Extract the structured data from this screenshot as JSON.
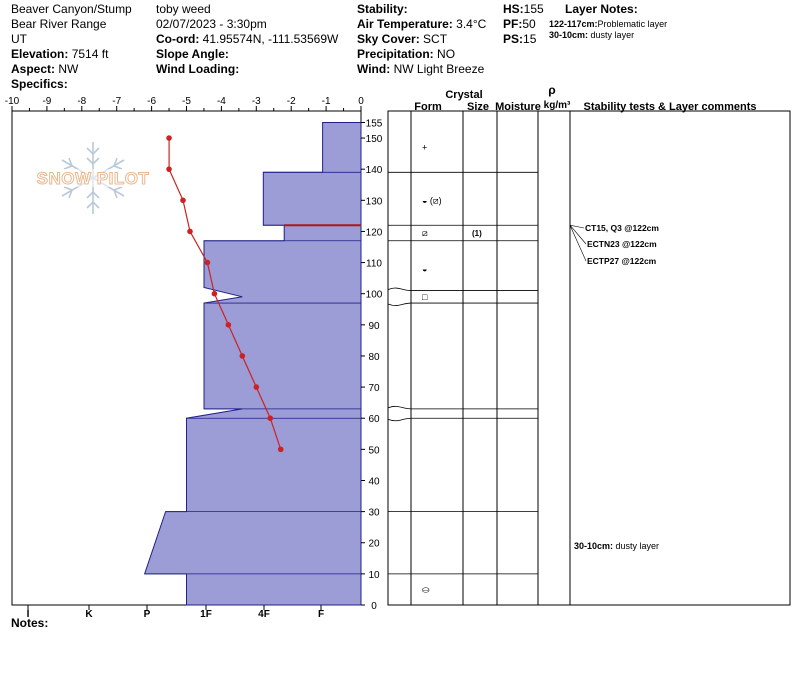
{
  "header": {
    "location": "Beaver Canyon/Stump",
    "range": "Bear River Range",
    "state": "UT",
    "elevation_label": "Elevation:",
    "elevation": "7514 ft",
    "aspect_label": "Aspect:",
    "aspect": "NW",
    "specifics_label": "Specifics:",
    "observer": "toby weed",
    "datetime": "02/07/2023 - 3:30pm",
    "coord_label": "Co-ord:",
    "coord": "41.95574N, -111.53569W",
    "slope_label": "Slope Angle:",
    "slope": "",
    "wind_loading_label": "Wind Loading:",
    "wind_loading": "",
    "stability_label": "Stability:",
    "stability": "",
    "air_temp_label": "Air Temperature:",
    "air_temp": "3.4°C",
    "sky_label": "Sky Cover:",
    "sky": "SCT",
    "precip_label": "Precipitation:",
    "precip": "NO",
    "wind_label": "Wind:",
    "wind": "NW Light Breeze",
    "hs_label": "HS:",
    "hs": "155",
    "pf_label": "PF:",
    "pf": "50",
    "ps_label": "PS:",
    "ps": "15",
    "layer_notes_label": "Layer Notes:",
    "layer_notes": [
      {
        "range": "122-117cm:",
        "text": "Problematic layer"
      },
      {
        "range": "30-10cm:",
        "text": "dusty layer"
      }
    ]
  },
  "watermark": "SNOW PILOT",
  "notes_label": "Notes:",
  "table_headers": {
    "crystal": "Crystal",
    "form": "Form",
    "size": "Size",
    "moisture": "Moisture",
    "rho": "ρ",
    "density_unit": "kg/m³",
    "comments": "Stability tests & Layer comments"
  },
  "chart_data": {
    "type": "snow-profile",
    "temp_axis": {
      "min": -10,
      "max": 0,
      "ticks": [
        -10,
        -9,
        -8,
        -7,
        -6,
        -5,
        -4,
        -3,
        -2,
        -1,
        0
      ]
    },
    "depth_axis": {
      "min": 0,
      "max": 155,
      "ticks": [
        0,
        10,
        20,
        30,
        40,
        50,
        60,
        70,
        80,
        90,
        100,
        110,
        120,
        130,
        140,
        150,
        155
      ]
    },
    "hardness_ticks": [
      "I",
      "K",
      "P",
      "1F",
      "4F",
      "F"
    ],
    "hardness_profile": [
      {
        "depth": 155,
        "temp_x": -1.1
      },
      {
        "depth": 139,
        "temp_x": -1.1
      },
      {
        "depth": 139,
        "temp_x": -2.8
      },
      {
        "depth": 122,
        "temp_x": -2.8
      },
      {
        "depth": 122,
        "temp_x": -2.2
      },
      {
        "depth": 117,
        "temp_x": -2.2
      },
      {
        "depth": 117,
        "temp_x": -4.5
      },
      {
        "depth": 102,
        "temp_x": -4.5
      },
      {
        "depth": 99,
        "temp_x": -3.4
      },
      {
        "depth": 97,
        "temp_x": -4.5
      },
      {
        "depth": 63,
        "temp_x": -4.5
      },
      {
        "depth": 63,
        "temp_x": -3.4
      },
      {
        "depth": 60,
        "temp_x": -5.0
      },
      {
        "depth": 30,
        "temp_x": -5.0
      },
      {
        "depth": 30,
        "temp_x": -5.6
      },
      {
        "depth": 10,
        "temp_x": -6.2
      },
      {
        "depth": 10,
        "temp_x": -5.0
      },
      {
        "depth": 0,
        "temp_x": -5.0
      }
    ],
    "highlight_layer": {
      "depth": 122,
      "from_x": -2.2,
      "to_x": 0
    },
    "temperature_profile": [
      {
        "temp": -5.5,
        "depth": 150
      },
      {
        "temp": -5.5,
        "depth": 140
      },
      {
        "temp": -5.1,
        "depth": 130
      },
      {
        "temp": -4.9,
        "depth": 120
      },
      {
        "temp": -4.4,
        "depth": 110
      },
      {
        "temp": -4.2,
        "depth": 100
      },
      {
        "temp": -3.8,
        "depth": 90
      },
      {
        "temp": -3.4,
        "depth": 80
      },
      {
        "temp": -3.0,
        "depth": 70
      },
      {
        "temp": -2.6,
        "depth": 60
      },
      {
        "temp": -2.3,
        "depth": 50
      }
    ],
    "layer_boundaries": [
      155,
      139,
      122,
      117,
      101,
      97,
      63,
      60,
      30,
      10,
      0
    ],
    "flare_boundaries": [
      101,
      97,
      63,
      60
    ],
    "crystal_forms": [
      {
        "depth": 147,
        "symbol": "+",
        "size": ""
      },
      {
        "depth": 130,
        "symbol": "◒ (⧄)",
        "size": ""
      },
      {
        "depth": 119.5,
        "symbol": "⧄",
        "size": "(1)"
      },
      {
        "depth": 108,
        "symbol": "◒",
        "size": ""
      },
      {
        "depth": 99,
        "symbol": "□",
        "size": ""
      },
      {
        "depth": 5,
        "symbol": "⛀",
        "size": ""
      }
    ],
    "stability_tests": [
      {
        "text": "CT15, Q3 @122cm",
        "depth": 122
      },
      {
        "text": "ECTN23 @122cm",
        "depth": 118
      },
      {
        "text": "ECTP27 @122cm",
        "depth": 112
      }
    ],
    "layer_comments": [
      {
        "text": "30-10cm: dusty layer",
        "depth": 19
      }
    ]
  },
  "colors": {
    "hardness_fill": "#9c9cd6",
    "hardness_stroke": "#20208a",
    "temp_line": "#cc2222",
    "highlight": "#b01818"
  }
}
